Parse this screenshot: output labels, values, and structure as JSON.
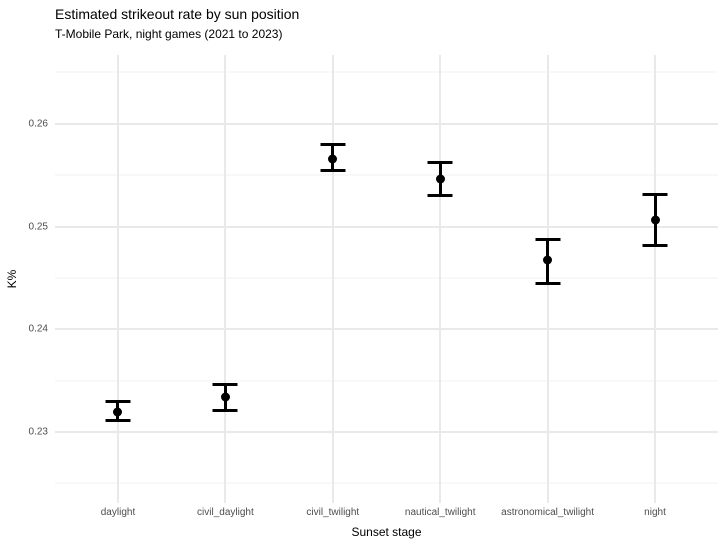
{
  "chart_data": {
    "type": "scatter",
    "subtype": "pointrange_with_error_bars",
    "title": "Estimated strikeout rate by sun position",
    "subtitle": "T-Mobile Park, night games (2021 to 2023)",
    "xlabel": "Sunset stage",
    "ylabel": "K%",
    "categories": [
      "daylight",
      "civil_daylight",
      "civil_twilight",
      "nautical_twilight",
      "astronomical_twilight",
      "night"
    ],
    "points": [
      {
        "category": "daylight",
        "estimate": 0.232,
        "ci_low": 0.231,
        "ci_high": 0.2331
      },
      {
        "category": "civil_daylight",
        "estimate": 0.2334,
        "ci_low": 0.232,
        "ci_high": 0.2348
      },
      {
        "category": "civil_twilight",
        "estimate": 0.2566,
        "ci_low": 0.2553,
        "ci_high": 0.2581
      },
      {
        "category": "nautical_twilight",
        "estimate": 0.2546,
        "ci_low": 0.2529,
        "ci_high": 0.2564
      },
      {
        "category": "astronomical_twilight",
        "estimate": 0.2467,
        "ci_low": 0.2443,
        "ci_high": 0.2489
      },
      {
        "category": "night",
        "estimate": 0.2506,
        "ci_low": 0.248,
        "ci_high": 0.2533
      }
    ],
    "y_axis": {
      "tick_labels": [
        "0.23",
        "0.24",
        "0.25",
        "0.26"
      ],
      "tick_values": [
        0.23,
        0.24,
        0.25,
        0.26
      ],
      "minor_tick_values": [
        0.225,
        0.235,
        0.245,
        0.255,
        0.265
      ],
      "range": [
        0.2231,
        0.2667
      ]
    },
    "ylim": [
      0.2231,
      0.2667
    ],
    "grid": "on",
    "legend": "none",
    "colors": {
      "point": "#000000",
      "grid_major": "#e9e9e9",
      "grid_minor": "#f2f2f2",
      "tick_label": "#4d4d4d",
      "background": "#ffffff"
    }
  }
}
